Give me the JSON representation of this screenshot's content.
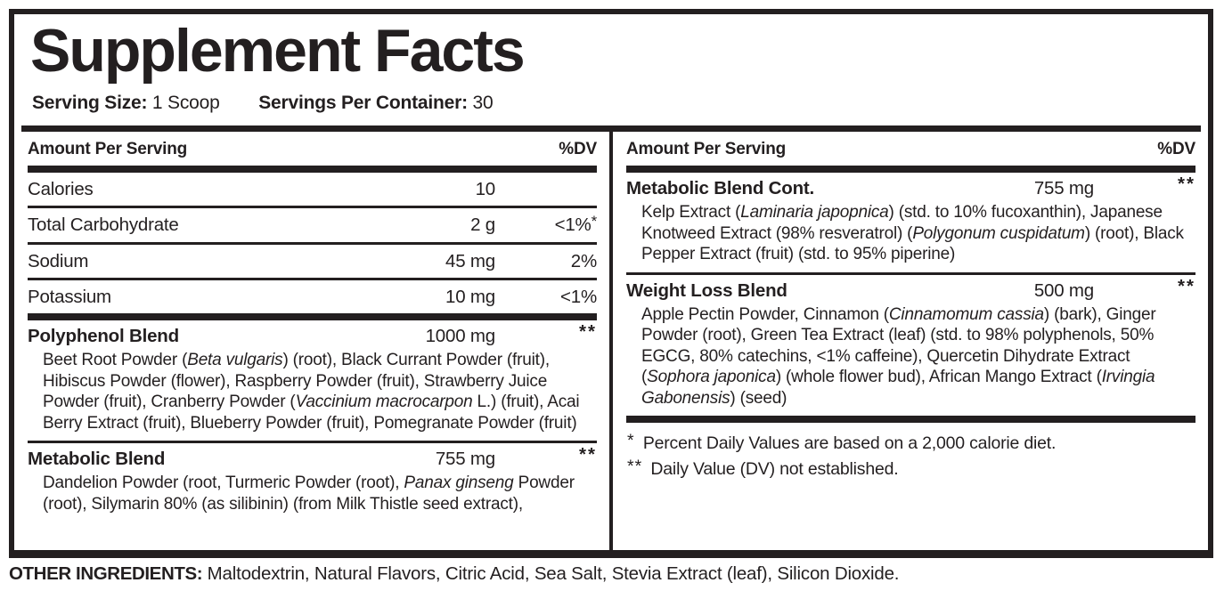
{
  "colors": {
    "ink": "#231f20",
    "background": "#ffffff"
  },
  "title": "Supplement Facts",
  "serving": {
    "size_label": "Serving Size:",
    "size_value": "1 Scoop",
    "per_container_label": "Servings Per Container:",
    "per_container_value": "30"
  },
  "table": {
    "left": {
      "header": {
        "amount": "Amount Per Serving",
        "dv": "%DV"
      },
      "nutrients": [
        {
          "name": "Calories",
          "amount": "10",
          "dv": "",
          "dv_sup": ""
        },
        {
          "name": "Total Carbohydrate",
          "amount": "2 g",
          "dv": "<1%",
          "dv_sup": "*"
        },
        {
          "name": "Sodium",
          "amount": "45 mg",
          "dv": "2%",
          "dv_sup": ""
        },
        {
          "name": "Potassium",
          "amount": "10 mg",
          "dv": "<1%",
          "dv_sup": ""
        }
      ],
      "blends": [
        {
          "name": "Polyphenol Blend",
          "amount": "1000 mg",
          "dv": "**",
          "desc": [
            {
              "t": "Beet Root Powder ("
            },
            {
              "t": "Beta vulgaris",
              "i": true
            },
            {
              "t": ") (root), Black Currant Powder (fruit), Hibiscus Powder (flower), Raspberry Powder (fruit), Strawberry Juice Powder (fruit), Cranberry Powder ("
            },
            {
              "t": "Vaccinium macrocarpon",
              "i": true
            },
            {
              "t": " L.) (fruit), Acai Berry Extract (fruit), Blueberry Powder (fruit), Pomegranate Powder (fruit)"
            }
          ]
        },
        {
          "name": "Metabolic Blend",
          "amount": "755 mg",
          "dv": "**",
          "desc": [
            {
              "t": "Dandelion Powder (root, Turmeric Powder (root), "
            },
            {
              "t": "Panax ginseng",
              "i": true
            },
            {
              "t": " Powder (root), Silymarin 80% (as silibinin) (from Milk Thistle seed extract),"
            }
          ]
        }
      ]
    },
    "right": {
      "header": {
        "amount": "Amount Per Serving",
        "dv": "%DV"
      },
      "blends": [
        {
          "name": "Metabolic Blend Cont.",
          "amount": "755 mg",
          "dv": "**",
          "desc": [
            {
              "t": "Kelp Extract ("
            },
            {
              "t": "Laminaria japopnica",
              "i": true
            },
            {
              "t": ") (std. to 10% fucoxanthin), Japanese Knotweed Extract (98% resveratrol) ("
            },
            {
              "t": "Polygonum cuspidatum",
              "i": true
            },
            {
              "t": ") (root), Black Pepper Extract (fruit)  (std. to 95% piperine)"
            }
          ]
        },
        {
          "name": "Weight Loss Blend",
          "amount": "500 mg",
          "dv": "**",
          "desc": [
            {
              "t": "Apple Pectin Powder, Cinnamon ("
            },
            {
              "t": "Cinnamomum cassia",
              "i": true
            },
            {
              "t": ") (bark), Ginger Powder (root), Green Tea Extract (leaf) (std. to 98% polyphenols, 50% EGCG, 80% catechins, <1% caffeine), Quercetin Dihydrate Extract ("
            },
            {
              "t": "Sophora japonica",
              "i": true
            },
            {
              "t": ") (whole flower bud), African Mango Extract ("
            },
            {
              "t": "Irvingia Gabonensis",
              "i": true
            },
            {
              "t": ") (seed)"
            }
          ]
        }
      ],
      "footnotes": [
        {
          "symbol": "*",
          "text": "Percent Daily Values are based on a 2,000 calorie diet."
        },
        {
          "symbol": "**",
          "text": "Daily Value (DV) not established."
        }
      ]
    }
  },
  "other_ingredients": {
    "label": "OTHER INGREDIENTS:",
    "text": " Maltodextrin, Natural Flavors, Citric Acid, Sea Salt, Stevia Extract (leaf), Silicon Dioxide."
  }
}
